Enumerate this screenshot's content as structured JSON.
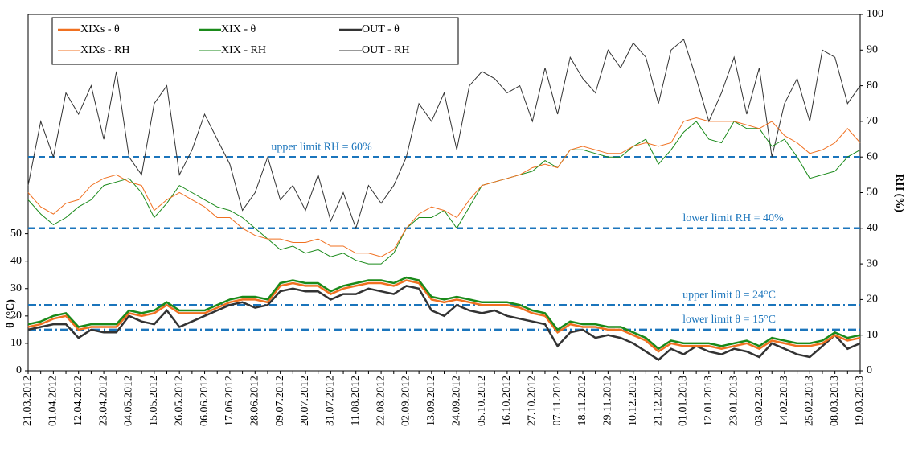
{
  "chart_data": {
    "type": "line",
    "categories": [
      "21.03.2012",
      null,
      "01.04.2012",
      null,
      "12.04.2012",
      null,
      "23.04.2012",
      null,
      "04.05.2012",
      null,
      "15.05.2012",
      null,
      "26.05.2012",
      null,
      "06.06.2012",
      null,
      "17.06.2012",
      null,
      "28.06.2012",
      null,
      "09.07.2012",
      null,
      "20.07.2012",
      null,
      "31.07.2012",
      null,
      "11.08.2012",
      null,
      "22.08.2012",
      null,
      "02.09.2012",
      null,
      "13.09.2012",
      null,
      "24.09.2012",
      null,
      "05.10.2012",
      null,
      "16.10.2012",
      null,
      "27.10.2012",
      null,
      "07.11.2012",
      null,
      "18.11.2012",
      null,
      "29.11.2012",
      null,
      "10.12.2012",
      null,
      "21.12.2012",
      null,
      "01.01.2013",
      null,
      "12.01.2013",
      null,
      "23.01.2013",
      null,
      "03.02.2013",
      null,
      "14.02.2013",
      null,
      "25.02.2013",
      null,
      "08.03.2013",
      null,
      "19.03.2013"
    ],
    "series": [
      {
        "name": "XIXs - θ",
        "color": "#f07020",
        "width": 2.5,
        "values": [
          16,
          17,
          19,
          20,
          15,
          16,
          16,
          16,
          21,
          20,
          21,
          24,
          21,
          21,
          21,
          23,
          25,
          26,
          26,
          25,
          31,
          32,
          31,
          31,
          28,
          30,
          31,
          32,
          32,
          31,
          33,
          32,
          26,
          25,
          26,
          25,
          24,
          24,
          24,
          23,
          21,
          20,
          14,
          17,
          16,
          16,
          15,
          15,
          13,
          11,
          7,
          10,
          9,
          9,
          9,
          8,
          9,
          10,
          8,
          11,
          10,
          9,
          9,
          10,
          13,
          11,
          12
        ]
      },
      {
        "name": "XIX - θ",
        "color": "#1a8a1a",
        "width": 2.5,
        "values": [
          17,
          18,
          20,
          21,
          16,
          17,
          17,
          17,
          22,
          21,
          22,
          25,
          22,
          22,
          22,
          24,
          26,
          27,
          27,
          26,
          32,
          33,
          32,
          32,
          29,
          31,
          32,
          33,
          33,
          32,
          34,
          33,
          27,
          26,
          27,
          26,
          25,
          25,
          25,
          24,
          22,
          21,
          15,
          18,
          17,
          17,
          16,
          16,
          14,
          12,
          8,
          11,
          10,
          10,
          10,
          9,
          10,
          11,
          9,
          12,
          11,
          10,
          10,
          11,
          14,
          12,
          13
        ]
      },
      {
        "name": "OUT - θ",
        "color": "#333333",
        "width": 2.5,
        "values": [
          15,
          16,
          17,
          17,
          12,
          15,
          14,
          14,
          20,
          18,
          17,
          22,
          16,
          18,
          20,
          22,
          24,
          25,
          23,
          24,
          29,
          30,
          29,
          29,
          26,
          28,
          28,
          30,
          29,
          28,
          31,
          30,
          22,
          20,
          24,
          22,
          21,
          22,
          20,
          19,
          18,
          17,
          9,
          14,
          15,
          12,
          13,
          12,
          10,
          7,
          4,
          8,
          6,
          9,
          7,
          6,
          8,
          7,
          5,
          10,
          8,
          6,
          5,
          9,
          13,
          8,
          10
        ]
      },
      {
        "name": "XIXs - RH",
        "color": "#f07020",
        "width": 1,
        "axis": "y2",
        "values": [
          50,
          46,
          44,
          47,
          48,
          52,
          54,
          55,
          53,
          52,
          45,
          48,
          50,
          48,
          46,
          43,
          43,
          40,
          38,
          37,
          37,
          36,
          36,
          37,
          35,
          35,
          33,
          33,
          32,
          34,
          40,
          44,
          46,
          45,
          43,
          48,
          52,
          53,
          54,
          55,
          57,
          58,
          57,
          62,
          63,
          62,
          61,
          61,
          63,
          64,
          63,
          64,
          70,
          71,
          70,
          70,
          70,
          69,
          68,
          70,
          66,
          64,
          61,
          62,
          64,
          68,
          64
        ]
      },
      {
        "name": "XIX - RH",
        "color": "#1a8a1a",
        "width": 1,
        "axis": "y2",
        "values": [
          48,
          44,
          41,
          43,
          46,
          48,
          52,
          53,
          54,
          50,
          43,
          47,
          52,
          50,
          48,
          46,
          45,
          43,
          40,
          37,
          34,
          35,
          33,
          34,
          32,
          33,
          31,
          30,
          30,
          33,
          40,
          43,
          43,
          45,
          40,
          46,
          52,
          53,
          54,
          55,
          56,
          59,
          57,
          62,
          62,
          61,
          60,
          60,
          63,
          65,
          58,
          62,
          67,
          70,
          65,
          64,
          70,
          68,
          68,
          63,
          65,
          60,
          54,
          55,
          56,
          60,
          62
        ]
      },
      {
        "name": "OUT - RH",
        "color": "#333333",
        "width": 1,
        "axis": "y2",
        "values": [
          52,
          70,
          60,
          78,
          72,
          80,
          65,
          84,
          60,
          55,
          75,
          80,
          55,
          62,
          72,
          65,
          58,
          45,
          50,
          60,
          48,
          52,
          45,
          55,
          42,
          50,
          40,
          52,
          47,
          52,
          60,
          75,
          70,
          78,
          62,
          80,
          84,
          82,
          78,
          80,
          70,
          85,
          72,
          88,
          82,
          78,
          90,
          85,
          92,
          88,
          75,
          90,
          93,
          82,
          70,
          78,
          88,
          72,
          85,
          60,
          75,
          82,
          70,
          90,
          88,
          75,
          80
        ]
      }
    ],
    "ylabel": "θ (°C)",
    "y2label": "RH (%)",
    "ylim": [
      0,
      130
    ],
    "yticks": [
      0,
      10,
      20,
      30,
      40,
      50
    ],
    "y2lim": [
      0,
      100
    ],
    "y2ticks": [
      0,
      10,
      20,
      30,
      40,
      50,
      60,
      70,
      80,
      90,
      100
    ],
    "reference_lines": [
      {
        "value": 60,
        "axis": "y2",
        "label": "upper limit  RH = 60%",
        "style": "dash",
        "color": "#1b75bc"
      },
      {
        "value": 40,
        "axis": "y2",
        "label": "lower limit  RH = 40%",
        "style": "dash",
        "color": "#1b75bc"
      },
      {
        "value": 24,
        "axis": "y",
        "label": "upper limit  θ = 24°C",
        "style": "dashdot",
        "color": "#1b75bc"
      },
      {
        "value": 15,
        "axis": "y",
        "label": "lower limit  θ = 15°C",
        "style": "dashdot",
        "color": "#1b75bc"
      }
    ],
    "legend": "upper left"
  }
}
